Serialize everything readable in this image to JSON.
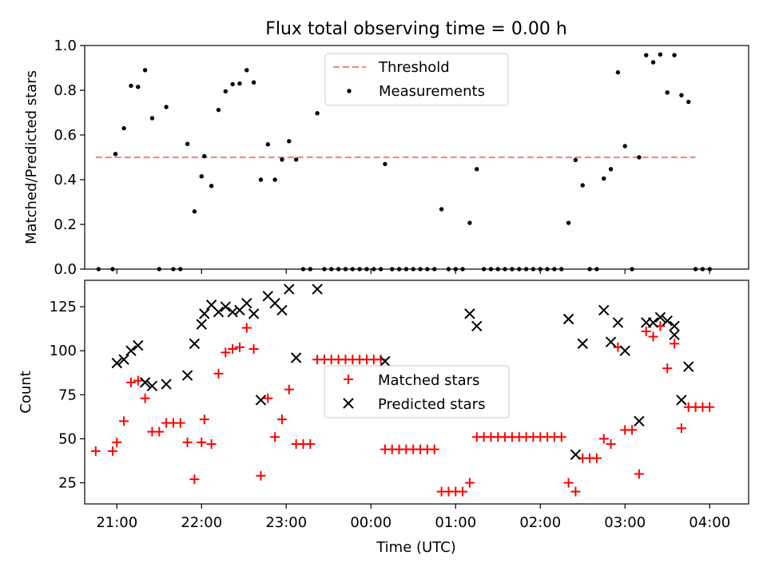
{
  "figure": {
    "title": "Flux total observing time = 0.00 h"
  },
  "chart_data": [
    {
      "type": "scatter",
      "title": "Flux total observing time = 0.00 h",
      "xlabel": "",
      "ylabel": "Matched/Predicted stars",
      "xlim": [
        20.62,
        4.46
      ],
      "x_ticks": [
        "21:00",
        "22:00",
        "23:00",
        "00:00",
        "01:00",
        "02:00",
        "03:00",
        "04:00"
      ],
      "x_tick_values": [
        21,
        22,
        23,
        24,
        25,
        26,
        27,
        28
      ],
      "x_tick_labels_visible": false,
      "ylim": [
        0,
        1.0
      ],
      "y_ticks": [
        "0.0",
        "0.2",
        "0.4",
        "0.6",
        "0.8",
        "1.0"
      ],
      "legend": {
        "position": "upper center",
        "entries": [
          "Threshold",
          "Measurements"
        ]
      },
      "threshold": {
        "name": "Threshold",
        "value": 0.5,
        "x_range": [
          "20:45",
          "03:50"
        ],
        "style": "dashed",
        "color": "#ff7f7f"
      },
      "series": [
        {
          "name": "Measurements",
          "marker": "dot",
          "color": "#000000",
          "points": [
            [
              "20:47",
              0.0
            ],
            [
              "20:57",
              0.0
            ],
            [
              "20:59",
              0.515
            ],
            [
              "21:05",
              0.63
            ],
            [
              "21:10",
              0.82
            ],
            [
              "21:15",
              0.815
            ],
            [
              "21:20",
              0.89
            ],
            [
              "21:25",
              0.675
            ],
            [
              "21:30",
              0.0
            ],
            [
              "21:35",
              0.725
            ],
            [
              "21:40",
              0.0
            ],
            [
              "21:45",
              0.0
            ],
            [
              "21:50",
              0.56
            ],
            [
              "21:55",
              0.258
            ],
            [
              "22:00",
              0.415
            ],
            [
              "22:02",
              0.505
            ],
            [
              "22:07",
              0.372
            ],
            [
              "22:12",
              0.712
            ],
            [
              "22:17",
              0.795
            ],
            [
              "22:22",
              0.827
            ],
            [
              "22:27",
              0.83
            ],
            [
              "22:32",
              0.89
            ],
            [
              "22:37",
              0.835
            ],
            [
              "22:42",
              0.4
            ],
            [
              "22:47",
              0.558
            ],
            [
              "22:52",
              0.4
            ],
            [
              "22:57",
              0.49
            ],
            [
              "23:02",
              0.572
            ],
            [
              "23:07",
              0.49
            ],
            [
              "23:12",
              0.0
            ],
            [
              "23:17",
              0.0
            ],
            [
              "23:22",
              0.697
            ],
            [
              "23:27",
              0.0
            ],
            [
              "23:32",
              0.0
            ],
            [
              "23:37",
              0.0
            ],
            [
              "23:42",
              0.0
            ],
            [
              "23:47",
              0.0
            ],
            [
              "23:52",
              0.0
            ],
            [
              "23:57",
              0.0
            ],
            [
              "00:02",
              0.0
            ],
            [
              "00:07",
              0.0
            ],
            [
              "00:10",
              0.47
            ],
            [
              "00:15",
              0.0
            ],
            [
              "00:20",
              0.0
            ],
            [
              "00:25",
              0.0
            ],
            [
              "00:30",
              0.0
            ],
            [
              "00:35",
              0.0
            ],
            [
              "00:40",
              0.0
            ],
            [
              "00:45",
              0.0
            ],
            [
              "00:50",
              0.268
            ],
            [
              "00:55",
              0.0
            ],
            [
              "01:00",
              0.0
            ],
            [
              "01:05",
              0.0
            ],
            [
              "01:10",
              0.207
            ],
            [
              "01:15",
              0.447
            ],
            [
              "01:20",
              0.0
            ],
            [
              "01:25",
              0.0
            ],
            [
              "01:30",
              0.0
            ],
            [
              "01:35",
              0.0
            ],
            [
              "01:40",
              0.0
            ],
            [
              "01:45",
              0.0
            ],
            [
              "01:50",
              0.0
            ],
            [
              "01:55",
              0.0
            ],
            [
              "02:00",
              0.0
            ],
            [
              "02:05",
              0.0
            ],
            [
              "02:10",
              0.0
            ],
            [
              "02:15",
              0.0
            ],
            [
              "02:20",
              0.207
            ],
            [
              "02:25",
              0.488
            ],
            [
              "02:30",
              0.375
            ],
            [
              "02:35",
              0.0
            ],
            [
              "02:40",
              0.0
            ],
            [
              "02:45",
              0.405
            ],
            [
              "02:50",
              0.447
            ],
            [
              "02:55",
              0.88
            ],
            [
              "03:00",
              0.55
            ],
            [
              "03:05",
              0.0
            ],
            [
              "03:10",
              0.5
            ],
            [
              "03:15",
              0.957
            ],
            [
              "03:20",
              0.925
            ],
            [
              "03:25",
              0.96
            ],
            [
              "03:30",
              0.79
            ],
            [
              "03:35",
              0.957
            ],
            [
              "03:40",
              0.778
            ],
            [
              "03:45",
              0.748
            ],
            [
              "03:50",
              0.0
            ],
            [
              "03:55",
              0.0
            ],
            [
              "04:00",
              0.0
            ]
          ]
        }
      ]
    },
    {
      "type": "scatter",
      "title": "",
      "xlabel": "Time (UTC)",
      "ylabel": "Count",
      "xlim": [
        20.62,
        4.46
      ],
      "x_ticks": [
        "21:00",
        "22:00",
        "23:00",
        "00:00",
        "01:00",
        "02:00",
        "03:00",
        "04:00"
      ],
      "x_tick_values": [
        21,
        22,
        23,
        24,
        25,
        26,
        27,
        28
      ],
      "ylim": [
        13,
        140
      ],
      "y_ticks": [
        "25",
        "50",
        "75",
        "100",
        "125"
      ],
      "y_tick_values": [
        25,
        50,
        75,
        100,
        125
      ],
      "legend": {
        "position": "center",
        "entries": [
          "Matched stars",
          "Predicted stars"
        ]
      },
      "series": [
        {
          "name": "Matched stars",
          "marker": "plus",
          "color": "#ff0000",
          "points": [
            [
              "20:45",
              43
            ],
            [
              "20:57",
              43
            ],
            [
              "21:00",
              48
            ],
            [
              "21:05",
              60
            ],
            [
              "21:10",
              82
            ],
            [
              "21:15",
              83
            ],
            [
              "21:20",
              73
            ],
            [
              "21:25",
              54
            ],
            [
              "21:30",
              54
            ],
            [
              "21:35",
              59
            ],
            [
              "21:40",
              59
            ],
            [
              "21:45",
              59
            ],
            [
              "21:50",
              48
            ],
            [
              "21:55",
              27
            ],
            [
              "22:00",
              48
            ],
            [
              "22:02",
              61
            ],
            [
              "22:07",
              47
            ],
            [
              "22:12",
              87
            ],
            [
              "22:17",
              99
            ],
            [
              "22:22",
              101
            ],
            [
              "22:27",
              102
            ],
            [
              "22:32",
              113
            ],
            [
              "22:37",
              101
            ],
            [
              "22:42",
              29
            ],
            [
              "22:47",
              73
            ],
            [
              "22:52",
              51
            ],
            [
              "22:57",
              61
            ],
            [
              "23:02",
              78
            ],
            [
              "23:07",
              47
            ],
            [
              "23:12",
              47
            ],
            [
              "23:17",
              47
            ],
            [
              "23:22",
              95
            ],
            [
              "23:27",
              95
            ],
            [
              "23:32",
              95
            ],
            [
              "23:37",
              95
            ],
            [
              "23:42",
              95
            ],
            [
              "23:47",
              95
            ],
            [
              "23:52",
              95
            ],
            [
              "23:57",
              95
            ],
            [
              "00:02",
              95
            ],
            [
              "00:07",
              95
            ],
            [
              "00:10",
              44
            ],
            [
              "00:15",
              44
            ],
            [
              "00:20",
              44
            ],
            [
              "00:25",
              44
            ],
            [
              "00:30",
              44
            ],
            [
              "00:35",
              44
            ],
            [
              "00:40",
              44
            ],
            [
              "00:45",
              44
            ],
            [
              "00:50",
              20
            ],
            [
              "00:55",
              20
            ],
            [
              "01:00",
              20
            ],
            [
              "01:05",
              20
            ],
            [
              "01:10",
              25
            ],
            [
              "01:15",
              51
            ],
            [
              "01:20",
              51
            ],
            [
              "01:25",
              51
            ],
            [
              "01:30",
              51
            ],
            [
              "01:35",
              51
            ],
            [
              "01:40",
              51
            ],
            [
              "01:45",
              51
            ],
            [
              "01:50",
              51
            ],
            [
              "01:55",
              51
            ],
            [
              "02:00",
              51
            ],
            [
              "02:05",
              51
            ],
            [
              "02:10",
              51
            ],
            [
              "02:15",
              51
            ],
            [
              "02:20",
              25
            ],
            [
              "02:25",
              20
            ],
            [
              "02:30",
              39
            ],
            [
              "02:35",
              39
            ],
            [
              "02:40",
              39
            ],
            [
              "02:45",
              50
            ],
            [
              "02:50",
              47
            ],
            [
              "02:55",
              102
            ],
            [
              "03:00",
              55
            ],
            [
              "03:05",
              55
            ],
            [
              "03:10",
              30
            ],
            [
              "03:15",
              111
            ],
            [
              "03:20",
              108
            ],
            [
              "03:25",
              114
            ],
            [
              "03:30",
              90
            ],
            [
              "03:35",
              104
            ],
            [
              "03:40",
              56
            ],
            [
              "03:45",
              68
            ],
            [
              "03:50",
              68
            ],
            [
              "03:55",
              68
            ],
            [
              "04:00",
              68
            ]
          ]
        },
        {
          "name": "Predicted stars",
          "marker": "x",
          "color": "#000000",
          "points": [
            [
              "21:00",
              93
            ],
            [
              "21:05",
              95
            ],
            [
              "21:10",
              100
            ],
            [
              "21:15",
              103
            ],
            [
              "21:20",
              82
            ],
            [
              "21:25",
              80
            ],
            [
              "21:35",
              81
            ],
            [
              "21:50",
              86
            ],
            [
              "21:55",
              104
            ],
            [
              "22:00",
              115
            ],
            [
              "22:02",
              121
            ],
            [
              "22:07",
              126
            ],
            [
              "22:12",
              122
            ],
            [
              "22:17",
              125
            ],
            [
              "22:22",
              122
            ],
            [
              "22:27",
              123
            ],
            [
              "22:32",
              127
            ],
            [
              "22:37",
              121
            ],
            [
              "22:42",
              72
            ],
            [
              "22:47",
              131
            ],
            [
              "22:52",
              127
            ],
            [
              "22:57",
              123
            ],
            [
              "23:02",
              135
            ],
            [
              "23:07",
              96
            ],
            [
              "23:22",
              135
            ],
            [
              "00:10",
              94
            ],
            [
              "01:10",
              121
            ],
            [
              "01:15",
              114
            ],
            [
              "02:20",
              118
            ],
            [
              "02:25",
              41
            ],
            [
              "02:30",
              104
            ],
            [
              "02:45",
              123
            ],
            [
              "02:50",
              105
            ],
            [
              "02:55",
              116
            ],
            [
              "03:00",
              100
            ],
            [
              "03:10",
              60
            ],
            [
              "03:15",
              116
            ],
            [
              "03:20",
              116
            ],
            [
              "03:25",
              119
            ],
            [
              "03:30",
              117
            ],
            [
              "03:35",
              114
            ],
            [
              "03:35",
              109
            ],
            [
              "03:40",
              72
            ],
            [
              "03:45",
              91
            ]
          ]
        }
      ]
    }
  ]
}
